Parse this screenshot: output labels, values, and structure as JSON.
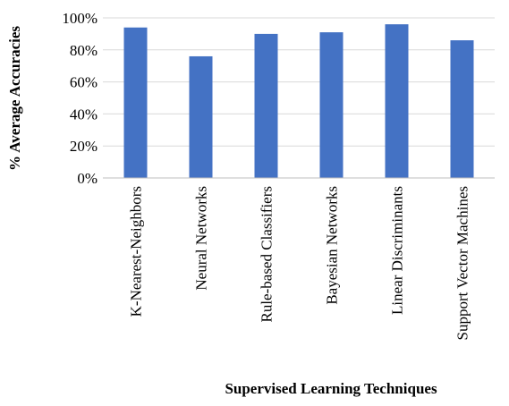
{
  "chart_data": {
    "type": "bar",
    "categories": [
      "K-Nearest-Neighbors",
      "Neural Networks",
      "Rule-based Classifiers",
      "Bayesian Networks",
      "Linear Discriminants",
      "Support Vector Machines"
    ],
    "values": [
      94,
      76,
      90,
      91,
      96,
      86
    ],
    "color": "#4472c4",
    "ylim": [
      0,
      100
    ],
    "yticks": [
      {
        "value": 0,
        "label": "0%"
      },
      {
        "value": 20,
        "label": "20%"
      },
      {
        "value": 40,
        "label": "40%"
      },
      {
        "value": 60,
        "label": "60%"
      },
      {
        "value": 80,
        "label": "80%"
      },
      {
        "value": 100,
        "label": "100%"
      }
    ],
    "grid": true,
    "xlabel": "Supervised Learning Techniques",
    "ylabel": "% Average Accuracies"
  }
}
